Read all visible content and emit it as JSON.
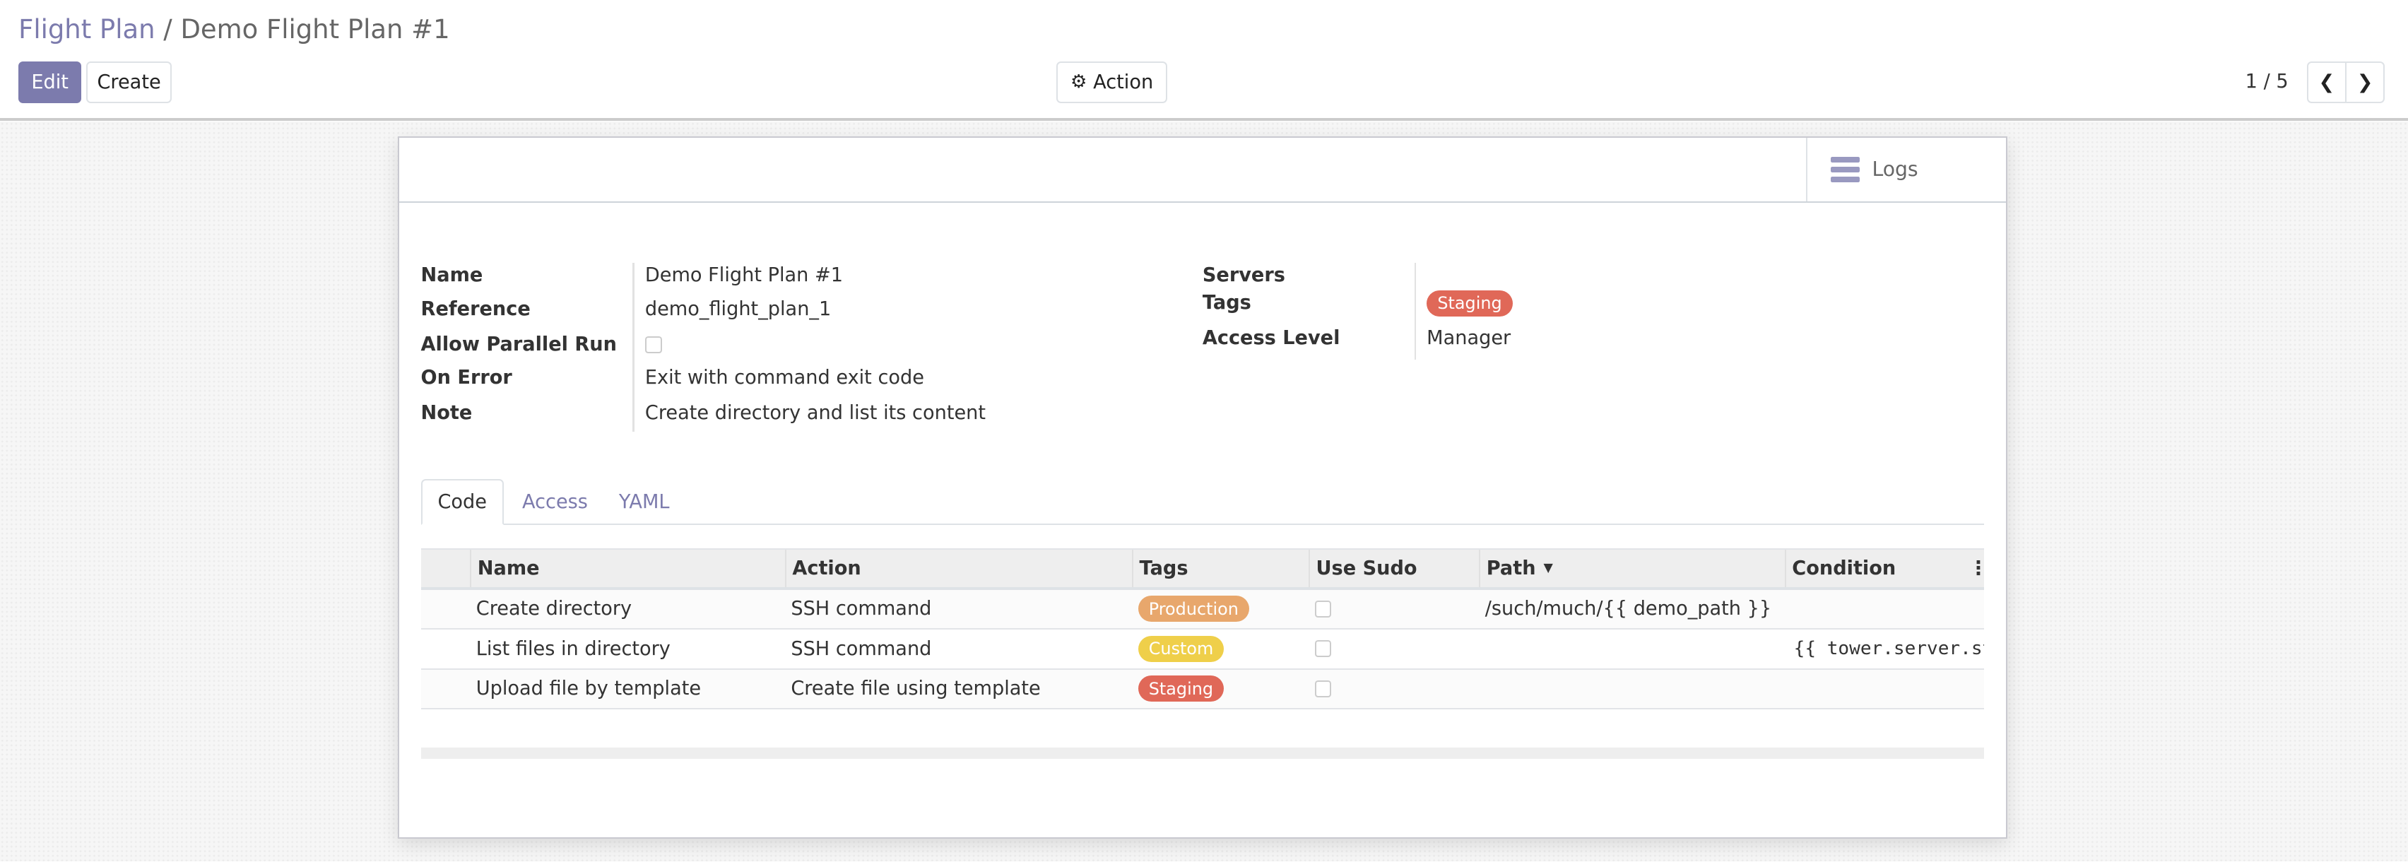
{
  "breadcrumb": {
    "parent": "Flight Plan",
    "separator": "/",
    "current": "Demo Flight Plan #1"
  },
  "toolbar": {
    "edit_label": "Edit",
    "create_label": "Create",
    "action_label": "Action",
    "action_icon": "gear-icon"
  },
  "pager": {
    "value": "1 / 5",
    "prev_icon": "chevron-left-icon",
    "next_icon": "chevron-right-icon"
  },
  "sheet_header": {
    "logs_label": "Logs",
    "logs_icon": "bars-icon"
  },
  "fields_left": [
    {
      "label": "Name",
      "value": "Demo Flight Plan #1"
    },
    {
      "label": "Reference",
      "value": "demo_flight_plan_1"
    },
    {
      "label": "Allow Parallel Run",
      "checked": false
    },
    {
      "label": "On Error",
      "value": "Exit with command exit code"
    },
    {
      "label": "Note",
      "value": "Create directory and list its content"
    }
  ],
  "fields_right": [
    {
      "label": "Servers",
      "value": ""
    },
    {
      "label": "Tags",
      "tag": "Staging",
      "tag_color": "#e06858"
    },
    {
      "label": "Access Level",
      "value": "Manager"
    }
  ],
  "tabs": [
    {
      "label": "Code",
      "active": true
    },
    {
      "label": "Access"
    },
    {
      "label": "YAML"
    }
  ],
  "table": {
    "columns": [
      "Name",
      "Action",
      "Tags",
      "Use Sudo",
      "Path",
      "Condition"
    ],
    "sort_icon": "caret-down-icon",
    "rows": [
      {
        "name": "Create directory",
        "action": "SSH command",
        "tag": "Production",
        "tag_color": "#e8a76c",
        "use_sudo": false,
        "path": "/such/much/{{ demo_path }}",
        "condition": ""
      },
      {
        "name": "List files in directory",
        "action": "SSH command",
        "tag": "Custom",
        "tag_color": "#efcf4a",
        "use_sudo": false,
        "path": "",
        "condition": "{{ tower.server.status"
      },
      {
        "name": "Upload file by template",
        "action": "Create file using template",
        "tag": "Staging",
        "tag_color": "#e06858",
        "use_sudo": false,
        "path": "",
        "condition": ""
      }
    ]
  },
  "colors": {
    "brand": "#7c7bad"
  }
}
